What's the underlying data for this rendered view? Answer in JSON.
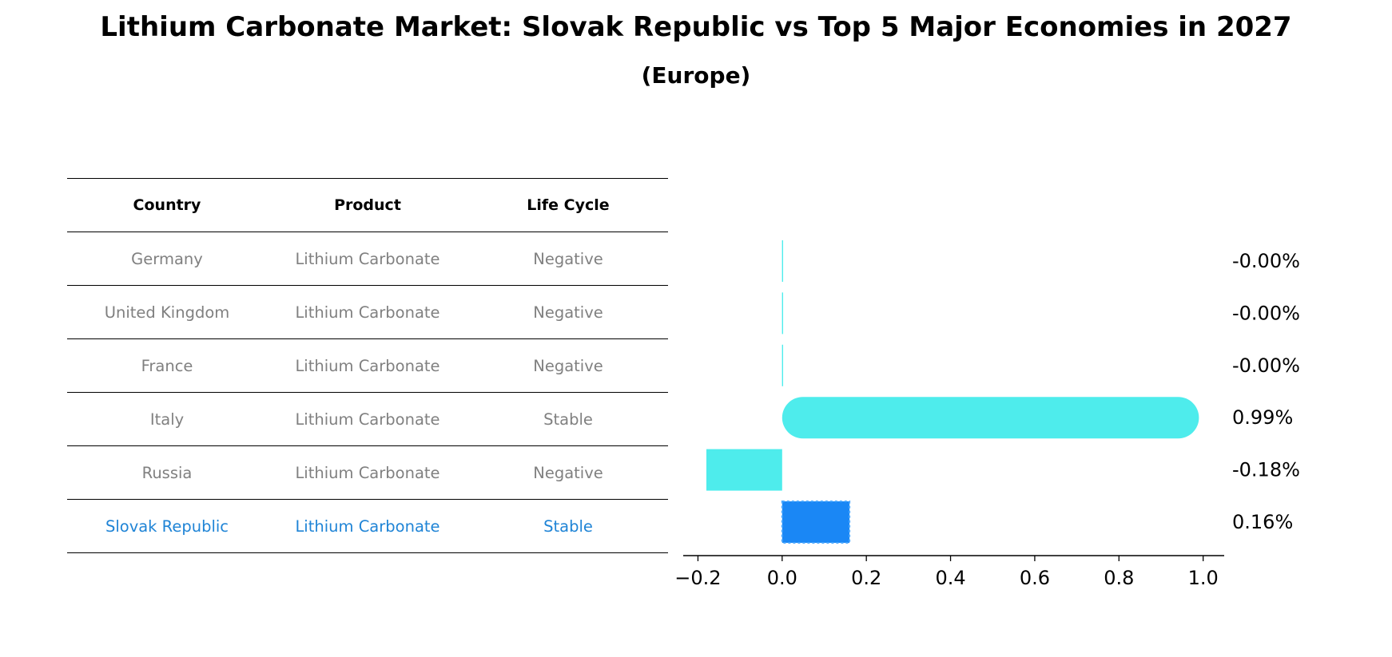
{
  "title": "Lithium Carbonate Market: Slovak Republic vs Top 5 Major Economies in 2027",
  "subtitle": "(Europe)",
  "table": {
    "headers": [
      "Country",
      "Product",
      "Life Cycle"
    ],
    "rows": [
      {
        "country": "Germany",
        "product": "Lithium Carbonate",
        "life_cycle": "Negative"
      },
      {
        "country": "United Kingdom",
        "product": "Lithium Carbonate",
        "life_cycle": "Negative"
      },
      {
        "country": "France",
        "product": "Lithium Carbonate",
        "life_cycle": "Negative"
      },
      {
        "country": "Italy",
        "product": "Lithium Carbonate",
        "life_cycle": "Stable"
      },
      {
        "country": "Russia",
        "product": "Lithium Carbonate",
        "life_cycle": "Negative"
      },
      {
        "country": "Slovak Republic",
        "product": "Lithium Carbonate",
        "life_cycle": "Stable"
      }
    ]
  },
  "colors": {
    "bar": "#4eecec",
    "highlight_bar": "#1a87f5",
    "highlight_text": "#1f84d6",
    "muted_text": "#808080"
  },
  "chart_data": {
    "type": "bar",
    "orientation": "horizontal",
    "title": "Lithium Carbonate Market: Slovak Republic vs Top 5 Major Economies in 2027",
    "subtitle": "(Europe)",
    "categories": [
      "Germany",
      "United Kingdom",
      "France",
      "Italy",
      "Russia",
      "Slovak Republic"
    ],
    "values": [
      -0.0,
      -0.0,
      -0.0,
      0.99,
      -0.18,
      0.16
    ],
    "value_labels": [
      "-0.00%",
      "-0.00%",
      "-0.00%",
      "0.99%",
      "-0.18%",
      "0.16%"
    ],
    "highlight": "Slovak Republic",
    "xlim": [
      -0.235,
      1.05
    ],
    "xticks": [
      -0.2,
      0.0,
      0.2,
      0.4,
      0.6,
      0.8,
      1.0
    ],
    "xtick_labels": [
      "−0.2",
      "0.0",
      "0.2",
      "0.4",
      "0.6",
      "0.8",
      "1.0"
    ],
    "xlabel": "",
    "ylabel": "",
    "grid": false
  }
}
